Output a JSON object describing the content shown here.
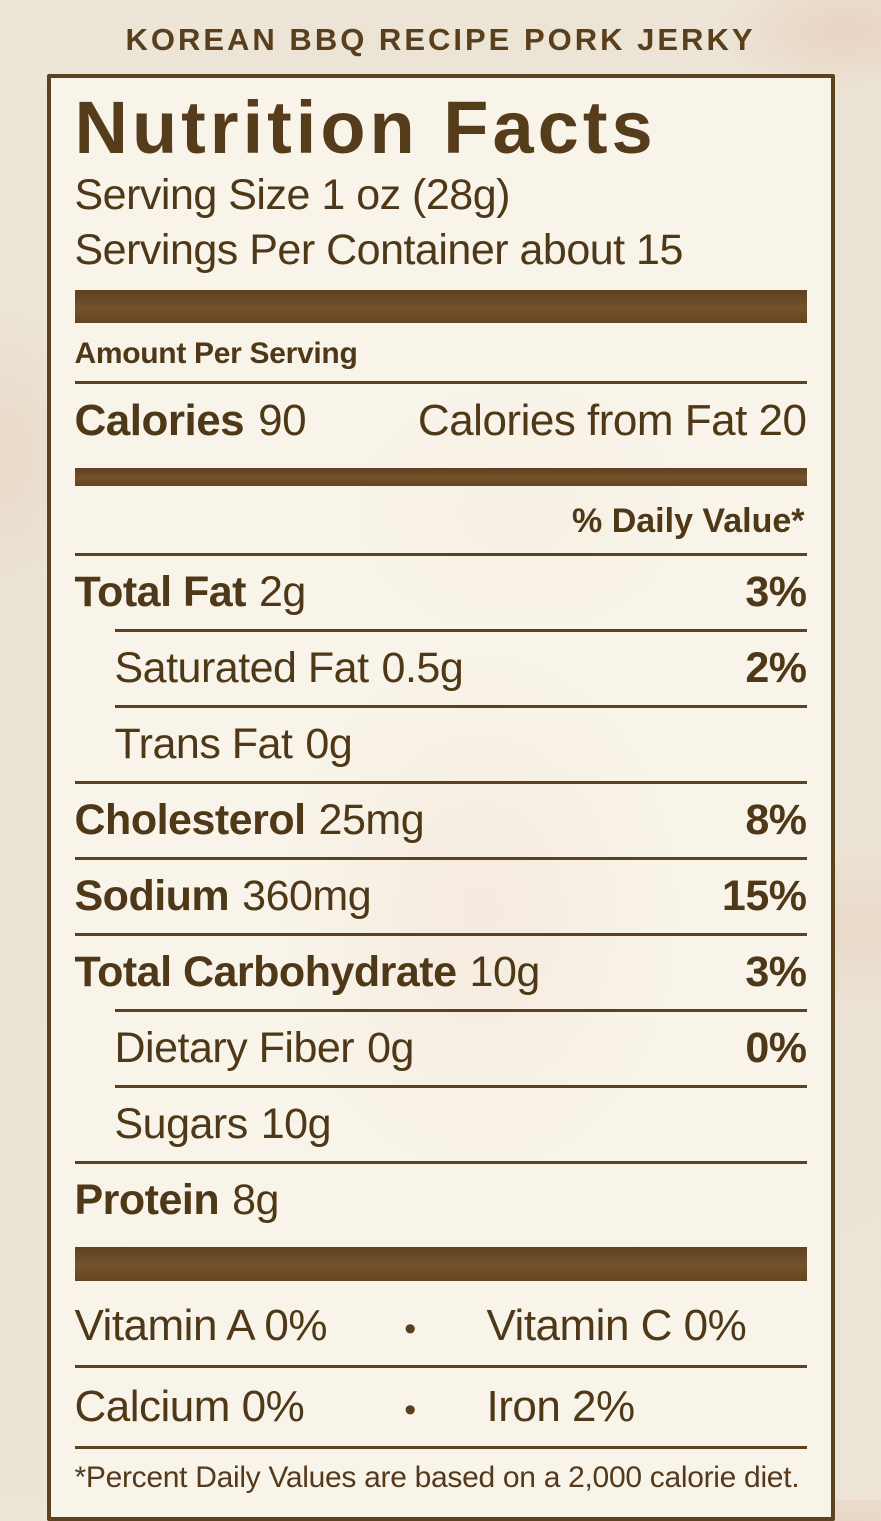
{
  "header": {
    "product_title": "KOREAN BBQ RECIPE PORK JERKY"
  },
  "label": {
    "title": "Nutrition Facts",
    "serving_size": "Serving Size 1 oz (28g)",
    "servings_per_container": "Servings Per Container about 15",
    "amount_per_serving": "Amount Per Serving",
    "calories": {
      "label": "Calories",
      "value": "90",
      "from_fat": "Calories from Fat 20"
    },
    "daily_value_header": "% Daily Value*",
    "rows": [
      {
        "name": "Total Fat",
        "amount": "2g",
        "dv": "3%",
        "bold": true,
        "indent": 0
      },
      {
        "name": "Saturated Fat",
        "amount": "0.5g",
        "dv": "2%",
        "bold": false,
        "indent": 1
      },
      {
        "name": "Trans Fat",
        "amount": "0g",
        "dv": "",
        "bold": false,
        "indent": 1
      },
      {
        "name": "Cholesterol",
        "amount": "25mg",
        "dv": "8%",
        "bold": true,
        "indent": 0
      },
      {
        "name": "Sodium",
        "amount": "360mg",
        "dv": "15%",
        "bold": true,
        "indent": 0
      },
      {
        "name": "Total Carbohydrate",
        "amount": "10g",
        "dv": "3%",
        "bold": true,
        "indent": 0
      },
      {
        "name": "Dietary Fiber",
        "amount": "0g",
        "dv": "0%",
        "bold": false,
        "indent": 1
      },
      {
        "name": "Sugars",
        "amount": "10g",
        "dv": "",
        "bold": false,
        "indent": 1
      },
      {
        "name": "Protein",
        "amount": "8g",
        "dv": "",
        "bold": true,
        "indent": 0
      }
    ],
    "bullet": "•",
    "micronutrients": [
      {
        "left": "Vitamin A 0%",
        "right": "Vitamin C 0%"
      },
      {
        "left": "Calcium 0%",
        "right": "Iron 2%"
      }
    ],
    "footnote": "*Percent Daily Values are based on a 2,000 calorie diet."
  },
  "colors": {
    "ink": "#4f3817",
    "rule": "#5c421f",
    "bar": "#6b4a26",
    "labelBg": "#f8f4e9",
    "pageBg": "#eae2d2"
  }
}
